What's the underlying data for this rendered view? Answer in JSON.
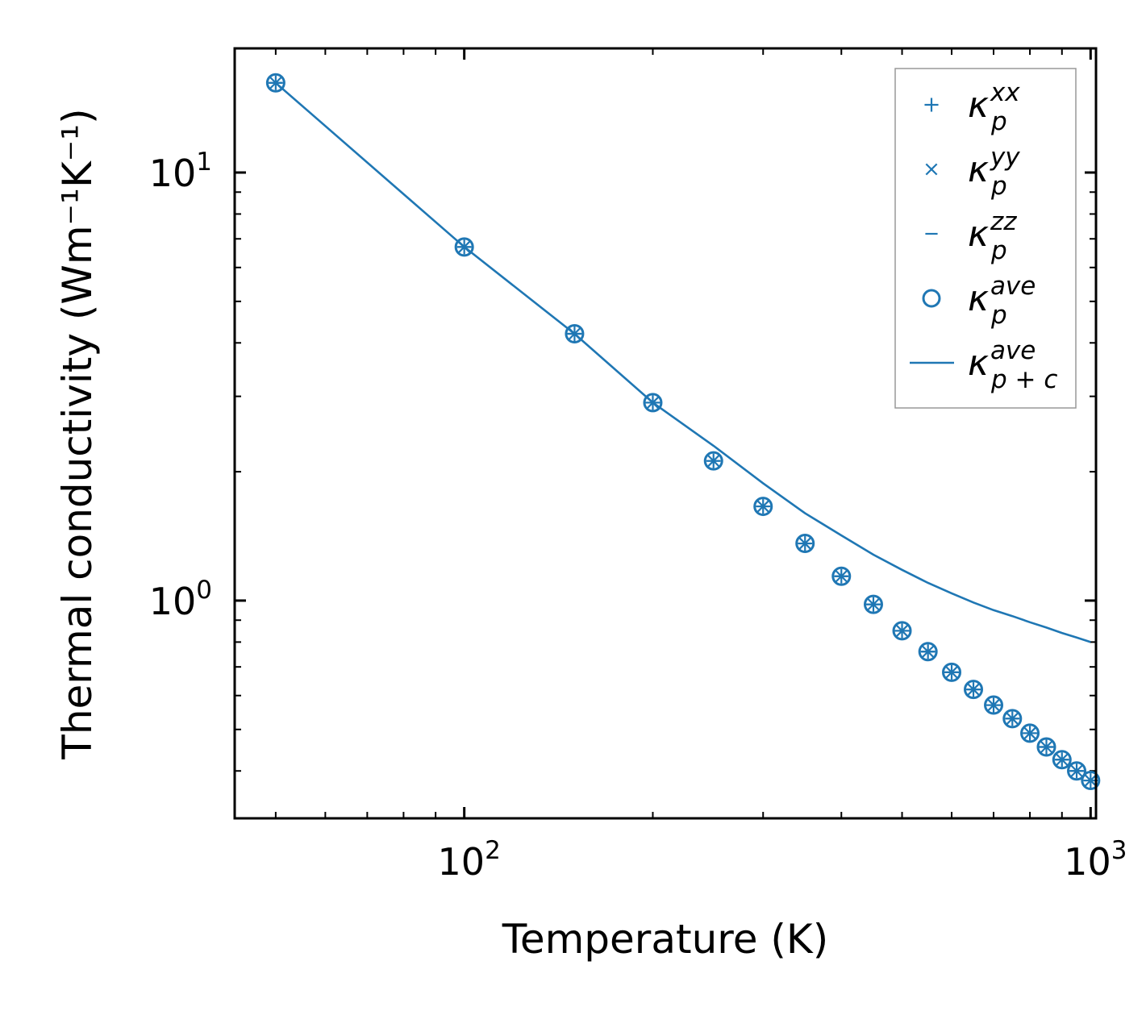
{
  "chart_data": {
    "type": "scatter",
    "title": "",
    "xlabel": "Temperature (K)",
    "ylabel": "Thermal conductivity (Wm⁻¹K⁻¹)",
    "xscale": "log",
    "yscale": "log",
    "xlim": [
      43,
      1020
    ],
    "ylim": [
      0.31,
      19.5
    ],
    "xticks": [
      {
        "base": "10",
        "exp": "2",
        "value": 100
      },
      {
        "base": "10",
        "exp": "3",
        "value": 1000
      }
    ],
    "yticks": [
      {
        "base": "10",
        "exp": "0",
        "value": 1
      },
      {
        "base": "10",
        "exp": "1",
        "value": 10
      }
    ],
    "grid": false,
    "legend_position": "top-right",
    "color": "#1f77b4",
    "x": [
      50,
      100,
      150,
      200,
      250,
      300,
      350,
      400,
      450,
      500,
      550,
      600,
      650,
      700,
      750,
      800,
      850,
      900,
      950,
      1000
    ],
    "series": [
      {
        "name": "kxx",
        "symbol": "κ",
        "sub": "p",
        "sup": "xx",
        "marker": "plus",
        "values": [
          16.2,
          6.7,
          4.2,
          2.9,
          2.12,
          1.66,
          1.36,
          1.14,
          0.98,
          0.85,
          0.76,
          0.68,
          0.62,
          0.57,
          0.53,
          0.49,
          0.455,
          0.425,
          0.4,
          0.38
        ]
      },
      {
        "name": "kyy",
        "symbol": "κ",
        "sub": "p",
        "sup": "yy",
        "marker": "x",
        "values": [
          16.2,
          6.7,
          4.2,
          2.9,
          2.12,
          1.66,
          1.36,
          1.14,
          0.98,
          0.85,
          0.76,
          0.68,
          0.62,
          0.57,
          0.53,
          0.49,
          0.455,
          0.425,
          0.4,
          0.38
        ]
      },
      {
        "name": "kzz",
        "symbol": "κ",
        "sub": "p",
        "sup": "zz",
        "marker": "hline",
        "values": [
          16.2,
          6.7,
          4.2,
          2.9,
          2.12,
          1.66,
          1.36,
          1.14,
          0.98,
          0.85,
          0.76,
          0.68,
          0.62,
          0.57,
          0.53,
          0.49,
          0.455,
          0.425,
          0.4,
          0.38
        ]
      },
      {
        "name": "kave",
        "symbol": "κ",
        "sub": "p",
        "sup": "ave",
        "marker": "circle",
        "values": [
          16.2,
          6.7,
          4.2,
          2.9,
          2.12,
          1.66,
          1.36,
          1.14,
          0.98,
          0.85,
          0.76,
          0.68,
          0.62,
          0.57,
          0.53,
          0.49,
          0.455,
          0.425,
          0.4,
          0.38
        ]
      },
      {
        "name": "kave_pc",
        "symbol": "κ",
        "sub": "p + c",
        "sup": "ave",
        "marker": "line",
        "values": [
          16.2,
          6.7,
          4.2,
          2.9,
          2.3,
          1.88,
          1.6,
          1.42,
          1.28,
          1.18,
          1.1,
          1.04,
          0.99,
          0.95,
          0.92,
          0.89,
          0.865,
          0.84,
          0.82,
          0.8
        ]
      }
    ]
  }
}
